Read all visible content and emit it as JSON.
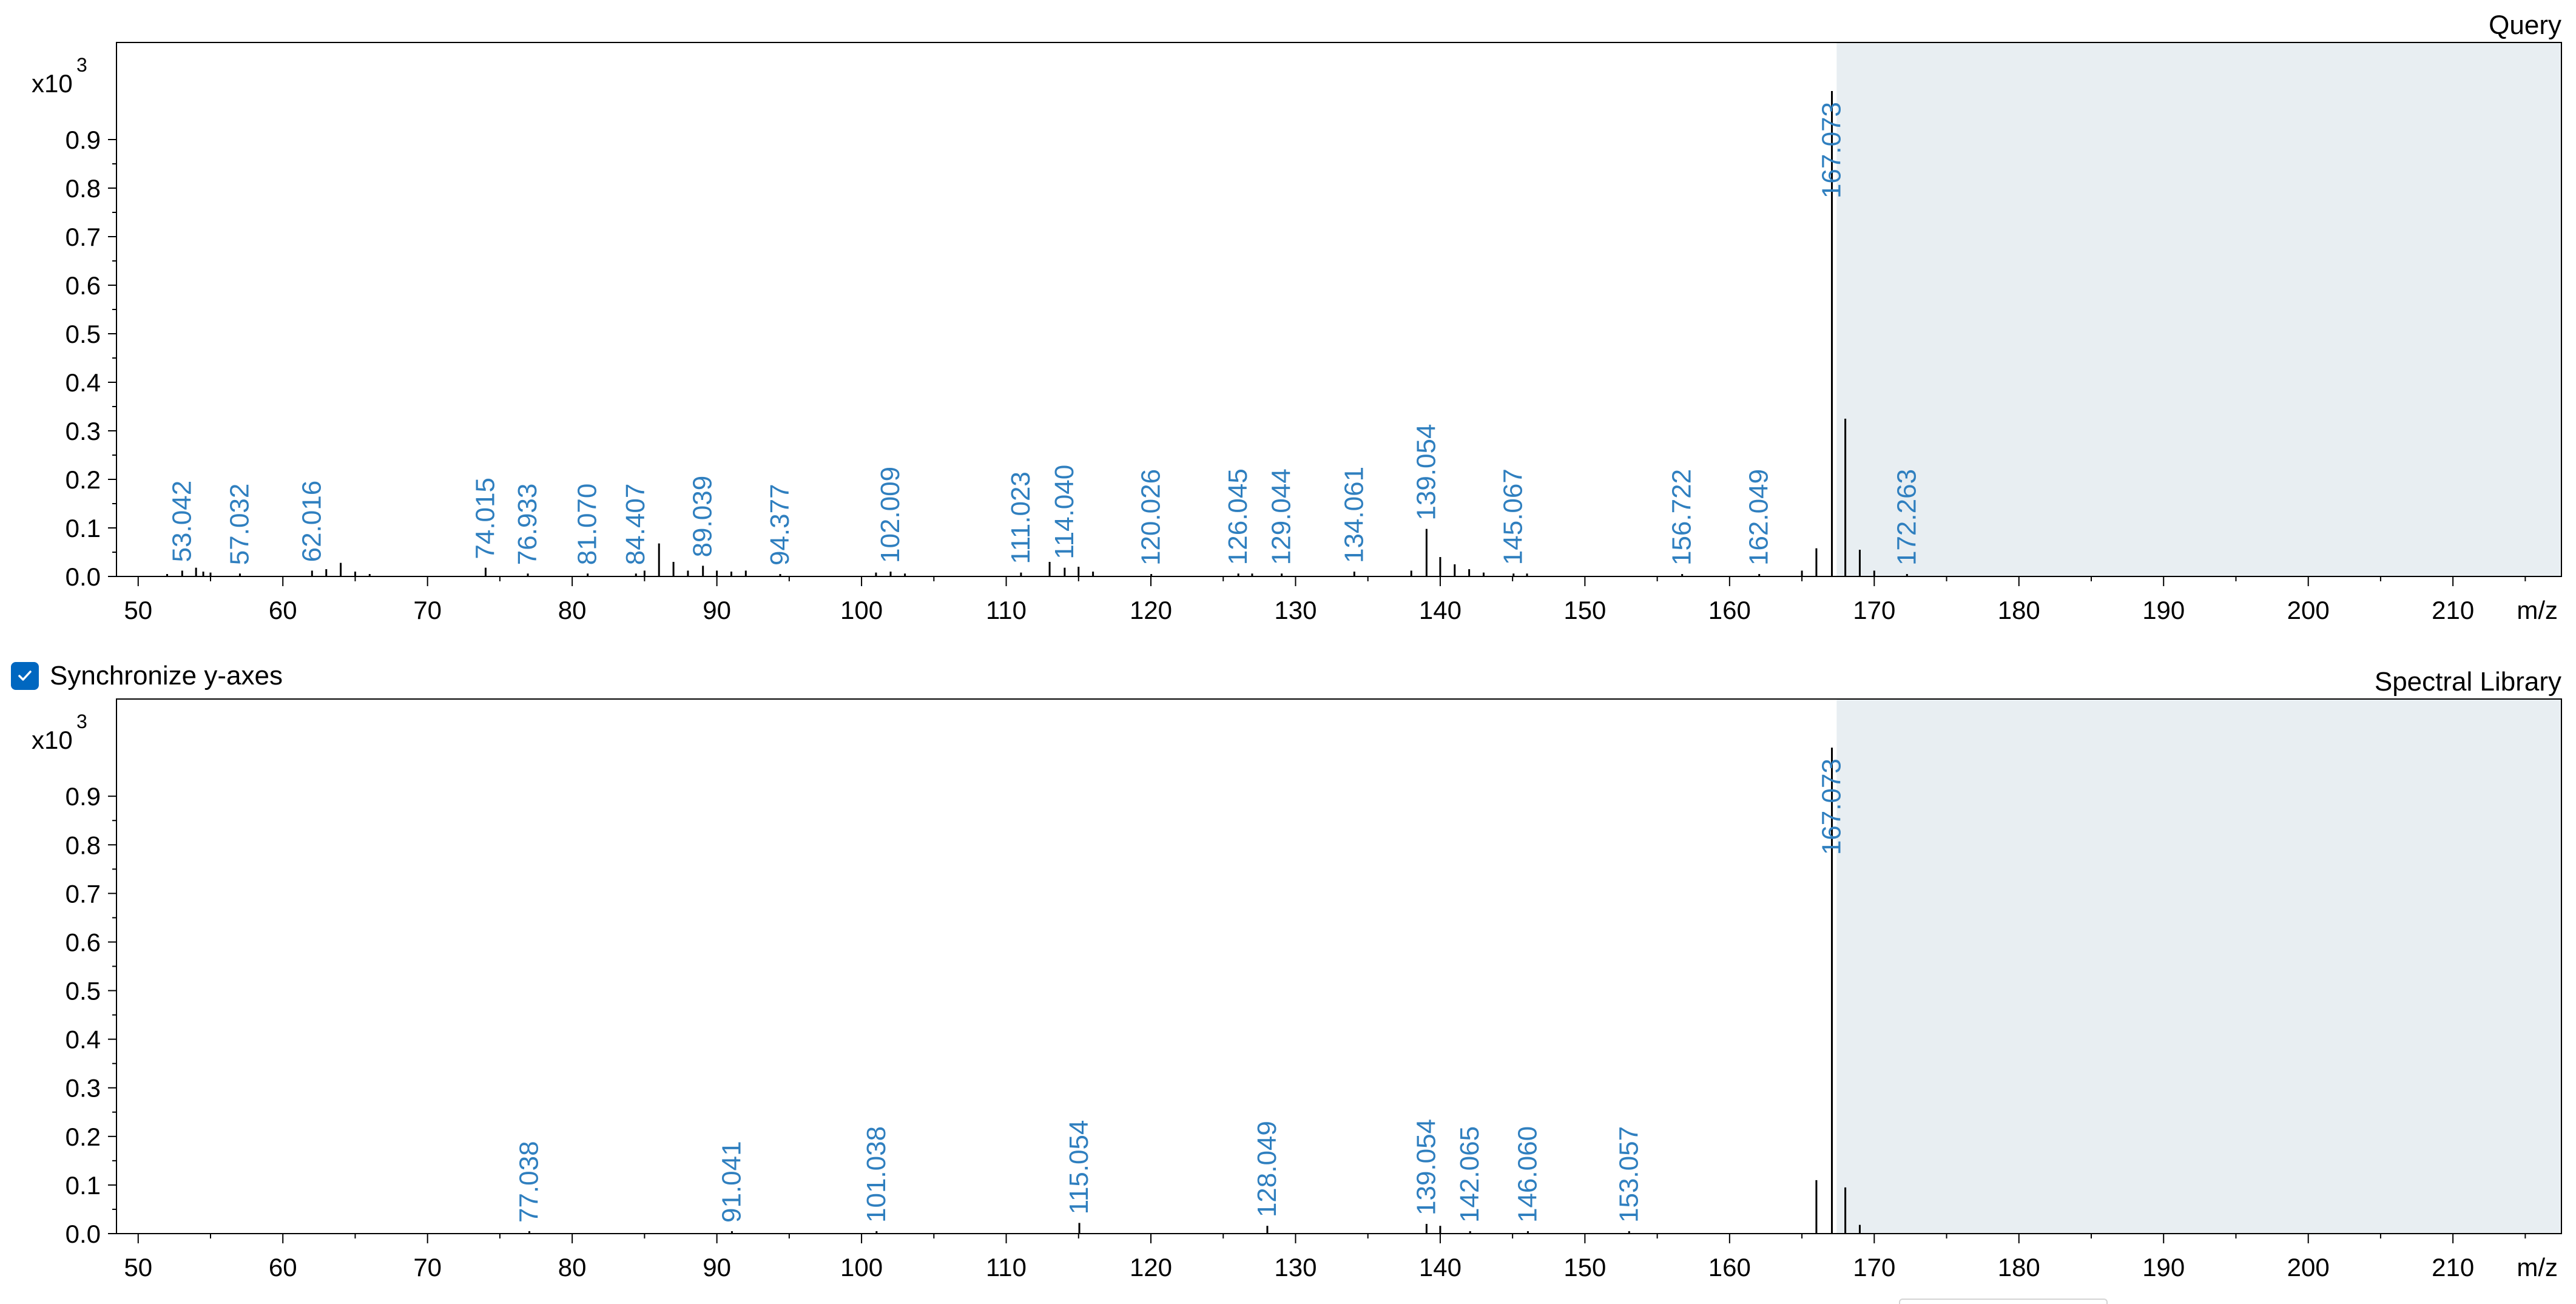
{
  "sync": {
    "label": "Synchronize y-axes",
    "checked": true
  },
  "colors": {
    "peak": "#000000",
    "peak_label": "#2f7fbf",
    "shade": "#e8eef2",
    "axis": "#000000",
    "checkbox": "#0067c0"
  },
  "chart_data": [
    {
      "type": "bar",
      "panel_title": "Query",
      "xlabel": "m/z",
      "yscale_label": "x10",
      "yscale_exponent": "3",
      "xlim": [
        48.5,
        217.5
      ],
      "ylim": [
        0,
        1.1
      ],
      "x_ticks": [
        50,
        60,
        70,
        80,
        90,
        100,
        110,
        120,
        130,
        140,
        150,
        160,
        170,
        180,
        190,
        200,
        210
      ],
      "y_ticks": [
        "0.0",
        "0.1",
        "0.2",
        "0.3",
        "0.4",
        "0.5",
        "0.6",
        "0.7",
        "0.8",
        "0.9"
      ],
      "shaded_from_mz": 167.4,
      "peaks": [
        {
          "mz": 52.0,
          "intensity": 0.005
        },
        {
          "mz": 53.042,
          "intensity": 0.012,
          "label": "53.042"
        },
        {
          "mz": 54.0,
          "intensity": 0.018
        },
        {
          "mz": 54.5,
          "intensity": 0.01
        },
        {
          "mz": 55.0,
          "intensity": 0.008
        },
        {
          "mz": 57.032,
          "intensity": 0.006,
          "label": "57.032"
        },
        {
          "mz": 62.016,
          "intensity": 0.012,
          "label": "62.016"
        },
        {
          "mz": 63.0,
          "intensity": 0.015
        },
        {
          "mz": 64.0,
          "intensity": 0.028
        },
        {
          "mz": 65.0,
          "intensity": 0.01
        },
        {
          "mz": 66.0,
          "intensity": 0.005
        },
        {
          "mz": 74.015,
          "intensity": 0.018,
          "label": "74.015"
        },
        {
          "mz": 76.933,
          "intensity": 0.006,
          "label": "76.933"
        },
        {
          "mz": 81.07,
          "intensity": 0.006,
          "label": "81.070"
        },
        {
          "mz": 84.407,
          "intensity": 0.006,
          "label": "84.407"
        },
        {
          "mz": 85.0,
          "intensity": 0.012
        },
        {
          "mz": 86.0,
          "intensity": 0.068
        },
        {
          "mz": 87.0,
          "intensity": 0.03
        },
        {
          "mz": 88.0,
          "intensity": 0.012
        },
        {
          "mz": 89.039,
          "intensity": 0.022,
          "label": "89.039"
        },
        {
          "mz": 90.0,
          "intensity": 0.012
        },
        {
          "mz": 91.0,
          "intensity": 0.01
        },
        {
          "mz": 92.0,
          "intensity": 0.012
        },
        {
          "mz": 94.377,
          "intensity": 0.004,
          "label": "94.377"
        },
        {
          "mz": 101.0,
          "intensity": 0.008
        },
        {
          "mz": 102.009,
          "intensity": 0.01,
          "label": "102.009"
        },
        {
          "mz": 103.0,
          "intensity": 0.006
        },
        {
          "mz": 111.023,
          "intensity": 0.008,
          "label": "111.023"
        },
        {
          "mz": 113.0,
          "intensity": 0.03
        },
        {
          "mz": 114.04,
          "intensity": 0.018,
          "label": "114.040"
        },
        {
          "mz": 115.0,
          "intensity": 0.02
        },
        {
          "mz": 116.0,
          "intensity": 0.01
        },
        {
          "mz": 120.026,
          "intensity": 0.004,
          "label": "120.026"
        },
        {
          "mz": 126.045,
          "intensity": 0.006,
          "label": "126.045"
        },
        {
          "mz": 127.0,
          "intensity": 0.006
        },
        {
          "mz": 129.044,
          "intensity": 0.006,
          "label": "129.044"
        },
        {
          "mz": 134.061,
          "intensity": 0.01,
          "label": "134.061"
        },
        {
          "mz": 138.0,
          "intensity": 0.012
        },
        {
          "mz": 139.054,
          "intensity": 0.098,
          "label": "139.054"
        },
        {
          "mz": 140.0,
          "intensity": 0.04
        },
        {
          "mz": 141.0,
          "intensity": 0.025
        },
        {
          "mz": 142.0,
          "intensity": 0.015
        },
        {
          "mz": 143.0,
          "intensity": 0.008
        },
        {
          "mz": 145.067,
          "intensity": 0.006,
          "label": "145.067"
        },
        {
          "mz": 146.0,
          "intensity": 0.006
        },
        {
          "mz": 156.722,
          "intensity": 0.004,
          "label": "156.722"
        },
        {
          "mz": 162.049,
          "intensity": 0.004,
          "label": "162.049"
        },
        {
          "mz": 165.0,
          "intensity": 0.012
        },
        {
          "mz": 166.0,
          "intensity": 0.058
        },
        {
          "mz": 167.073,
          "intensity": 1.0,
          "label": "167.073"
        },
        {
          "mz": 168.0,
          "intensity": 0.325
        },
        {
          "mz": 169.0,
          "intensity": 0.055
        },
        {
          "mz": 170.0,
          "intensity": 0.012
        },
        {
          "mz": 172.263,
          "intensity": 0.004,
          "label": "172.263"
        }
      ]
    },
    {
      "type": "bar",
      "panel_title": "Spectral Library",
      "xlabel": "m/z",
      "yscale_label": "x10",
      "yscale_exponent": "3",
      "xlim": [
        48.5,
        217.5
      ],
      "ylim": [
        0,
        1.1
      ],
      "x_ticks": [
        50,
        60,
        70,
        80,
        90,
        100,
        110,
        120,
        130,
        140,
        150,
        160,
        170,
        180,
        190,
        200,
        210
      ],
      "y_ticks": [
        "0.0",
        "0.1",
        "0.2",
        "0.3",
        "0.4",
        "0.5",
        "0.6",
        "0.7",
        "0.8",
        "0.9"
      ],
      "shaded_from_mz": 167.4,
      "peaks": [
        {
          "mz": 77.038,
          "intensity": 0.004,
          "label": "77.038"
        },
        {
          "mz": 91.041,
          "intensity": 0.004,
          "label": "91.041"
        },
        {
          "mz": 101.038,
          "intensity": 0.004,
          "label": "101.038"
        },
        {
          "mz": 115.054,
          "intensity": 0.022,
          "label": "115.054"
        },
        {
          "mz": 128.049,
          "intensity": 0.016,
          "label": "128.049"
        },
        {
          "mz": 139.054,
          "intensity": 0.02,
          "label": "139.054"
        },
        {
          "mz": 140.0,
          "intensity": 0.016
        },
        {
          "mz": 142.065,
          "intensity": 0.005,
          "label": "142.065"
        },
        {
          "mz": 146.06,
          "intensity": 0.004,
          "label": "146.060"
        },
        {
          "mz": 153.057,
          "intensity": 0.004,
          "label": "153.057"
        },
        {
          "mz": 166.0,
          "intensity": 0.11
        },
        {
          "mz": 167.073,
          "intensity": 1.0,
          "label": "167.073"
        },
        {
          "mz": 168.0,
          "intensity": 0.095
        },
        {
          "mz": 169.0,
          "intensity": 0.018
        }
      ]
    }
  ]
}
